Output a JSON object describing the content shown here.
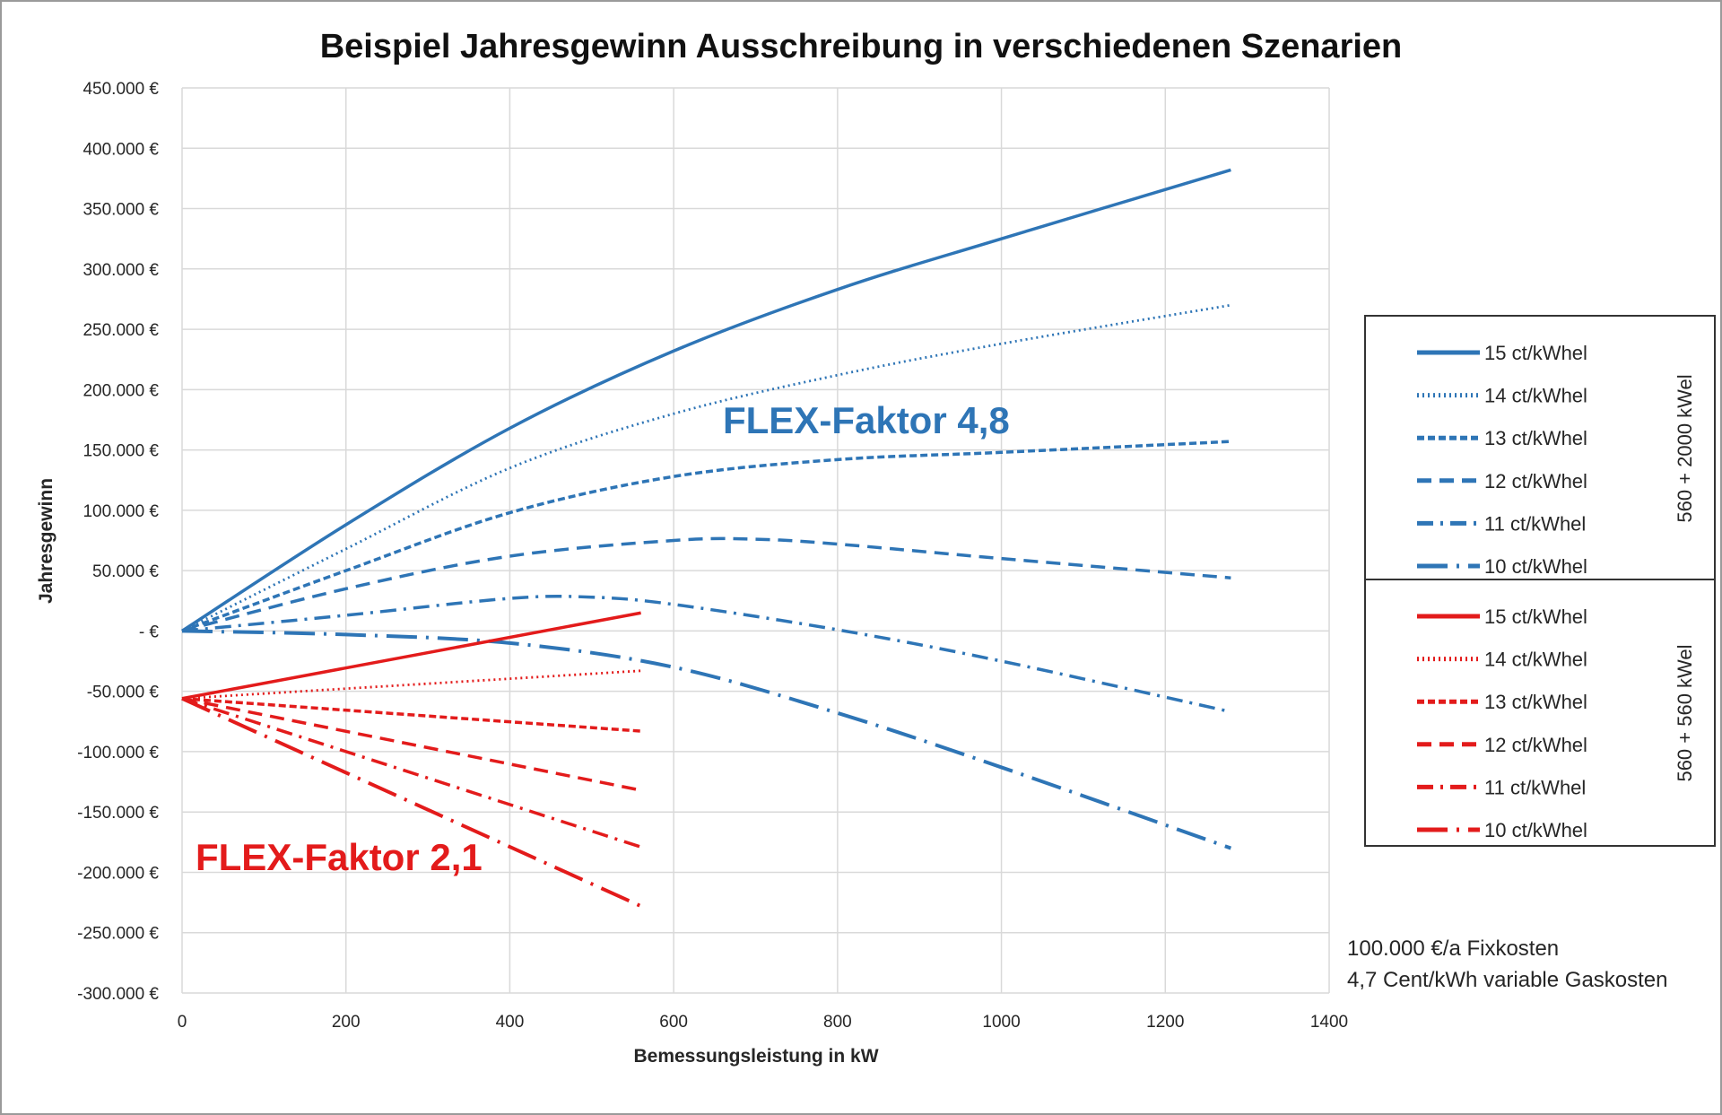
{
  "chart_data": {
    "type": "line",
    "title": "Beispiel Jahresgewinn Ausschreibung in verschiedenen Szenarien",
    "xlabel": "Bemessungsleistung in kW",
    "ylabel": "Jahresgewinn",
    "xlim": [
      0,
      1400
    ],
    "ylim": [
      -300000,
      450000
    ],
    "x_ticks": [
      "0",
      "200",
      "400",
      "600",
      "800",
      "1000",
      "1200",
      "1400"
    ],
    "y_ticks": [
      "450.000 €",
      "400.000 €",
      "350.000 €",
      "300.000 €",
      "250.000 €",
      "200.000 €",
      "150.000 €",
      "100.000 €",
      "50.000 €",
      "-  €",
      "-50.000 €",
      "-100.000 €",
      "-150.000 €",
      "-200.000 €",
      "-250.000 €",
      "-300.000 €"
    ],
    "grid": true,
    "legend_position": "right",
    "legend_groups": [
      {
        "label": "560 + 2000 kWel",
        "color": "#2E75B6"
      },
      {
        "label": "560 + 560 kWel",
        "color": "#E31B1B"
      }
    ],
    "series": [
      {
        "name": "15 ct/kWhel",
        "group": 0,
        "color": "#2E75B6",
        "style": "solid",
        "x": [
          0,
          200,
          400,
          600,
          800,
          1000,
          1280
        ],
        "y": [
          0,
          88000,
          168000,
          232000,
          283000,
          325000,
          382000
        ]
      },
      {
        "name": "14 ct/kWhel",
        "group": 0,
        "color": "#2E75B6",
        "style": "dotted",
        "x": [
          0,
          200,
          400,
          600,
          800,
          1000,
          1280
        ],
        "y": [
          0,
          68000,
          135000,
          180000,
          212000,
          238000,
          270000
        ]
      },
      {
        "name": "13 ct/kWhel",
        "group": 0,
        "color": "#2E75B6",
        "style": "short-dash",
        "x": [
          0,
          200,
          400,
          600,
          800,
          1000,
          1280
        ],
        "y": [
          0,
          50000,
          98000,
          128000,
          142000,
          148000,
          157000
        ]
      },
      {
        "name": "12 ct/kWhel",
        "group": 0,
        "color": "#2E75B6",
        "style": "dash",
        "x": [
          0,
          200,
          400,
          600,
          700,
          800,
          1000,
          1280
        ],
        "y": [
          0,
          35000,
          62000,
          75000,
          76000,
          72000,
          60000,
          44000
        ]
      },
      {
        "name": "11 ct/kWhel",
        "group": 0,
        "color": "#2E75B6",
        "style": "dash-dot",
        "x": [
          0,
          200,
          400,
          500,
          600,
          800,
          1000,
          1280
        ],
        "y": [
          0,
          13000,
          27000,
          28000,
          22000,
          1000,
          -25000,
          -67000
        ]
      },
      {
        "name": "10 ct/kWhel",
        "group": 0,
        "color": "#2E75B6",
        "style": "long-dash-dot",
        "x": [
          0,
          200,
          400,
          600,
          800,
          1000,
          1280
        ],
        "y": [
          0,
          -3000,
          -10000,
          -30000,
          -68000,
          -113000,
          -180000
        ]
      },
      {
        "name": "15 ct/kWhel",
        "group": 1,
        "color": "#E31B1B",
        "style": "solid",
        "x": [
          0,
          560
        ],
        "y": [
          -56000,
          15000
        ]
      },
      {
        "name": "14 ct/kWhel",
        "group": 1,
        "color": "#E31B1B",
        "style": "dotted",
        "x": [
          0,
          560
        ],
        "y": [
          -56000,
          -33000
        ]
      },
      {
        "name": "13 ct/kWhel",
        "group": 1,
        "color": "#E31B1B",
        "style": "short-dash",
        "x": [
          0,
          560
        ],
        "y": [
          -56000,
          -83000
        ]
      },
      {
        "name": "12 ct/kWhel",
        "group": 1,
        "color": "#E31B1B",
        "style": "dash",
        "x": [
          0,
          560
        ],
        "y": [
          -56000,
          -132000
        ]
      },
      {
        "name": "11 ct/kWhel",
        "group": 1,
        "color": "#E31B1B",
        "style": "dash-dot",
        "x": [
          0,
          560
        ],
        "y": [
          -56000,
          -179000
        ]
      },
      {
        "name": "10 ct/kWhel",
        "group": 1,
        "color": "#E31B1B",
        "style": "long-dash-dot",
        "x": [
          0,
          560
        ],
        "y": [
          -56000,
          -228000
        ]
      }
    ],
    "annotations": [
      {
        "text": "FLEX-Faktor 4,8",
        "color": "#2E75B6"
      },
      {
        "text": "FLEX-Faktor 2,1",
        "color": "#E31B1B"
      }
    ],
    "notes": [
      "100.000 €/a Fixkosten",
      "4,7 Cent/kWh variable Gaskosten"
    ]
  }
}
